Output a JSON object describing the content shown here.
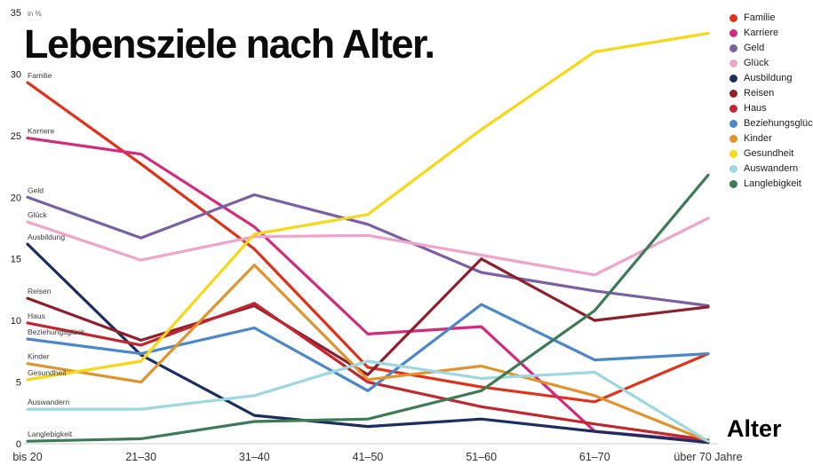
{
  "title": "Lebensziele nach Alter.",
  "y_axis_unit": "in %",
  "chart_data": {
    "type": "line",
    "title": "Lebensziele nach Alter.",
    "xlabel": "Alter",
    "ylabel": "in %",
    "ylim": [
      0,
      35
    ],
    "ytick_step": 5,
    "grid": false,
    "legend_position": "top-right",
    "categories": [
      "bis 20",
      "21–30",
      "31–40",
      "41–50",
      "51–60",
      "61–70",
      "über 70 Jahre"
    ],
    "series": [
      {
        "name": "Familie",
        "color": "#e23119",
        "values": [
          29.3,
          22.7,
          15.8,
          6.2,
          4.6,
          3.4,
          7.3
        ]
      },
      {
        "name": "Karriere",
        "color": "#d42a7c",
        "values": [
          24.8,
          23.5,
          17.6,
          8.9,
          9.5,
          1.0,
          0.2
        ]
      },
      {
        "name": "Geld",
        "color": "#7a5fa3",
        "values": [
          20.0,
          16.7,
          20.2,
          17.8,
          13.9,
          12.4,
          11.2
        ]
      },
      {
        "name": "Glück",
        "color": "#efa5ca",
        "values": [
          18.0,
          14.9,
          16.8,
          16.9,
          15.3,
          13.7,
          18.3
        ]
      },
      {
        "name": "Ausbildung",
        "color": "#1c2d5f",
        "values": [
          16.2,
          7.2,
          2.3,
          1.4,
          2.0,
          1.0,
          0.1
        ]
      },
      {
        "name": "Reisen",
        "color": "#8f1f2a",
        "values": [
          11.8,
          8.4,
          11.2,
          5.6,
          15.0,
          10.0,
          11.1
        ]
      },
      {
        "name": "Haus",
        "color": "#c1272d",
        "values": [
          9.8,
          8.0,
          11.4,
          5.0,
          3.0,
          1.6,
          0.3
        ]
      },
      {
        "name": "Beziehungsglück",
        "color": "#4b87c9",
        "values": [
          8.5,
          7.3,
          9.4,
          4.3,
          11.3,
          6.8,
          7.3
        ]
      },
      {
        "name": "Kinder",
        "color": "#e2932c",
        "values": [
          6.5,
          5.0,
          14.5,
          5.2,
          6.3,
          3.9,
          0.2
        ]
      },
      {
        "name": "Gesundheit",
        "color": "#f8d714",
        "values": [
          5.2,
          6.7,
          17.0,
          18.6,
          25.5,
          31.8,
          33.3
        ]
      },
      {
        "name": "Auswandern",
        "color": "#9bd8e2",
        "values": [
          2.8,
          2.8,
          3.9,
          6.7,
          5.3,
          5.8,
          0.2
        ]
      },
      {
        "name": "Langlebigkeit",
        "color": "#3d7b57",
        "values": [
          0.2,
          0.4,
          1.8,
          2.0,
          4.3,
          10.8,
          21.8
        ]
      }
    ]
  }
}
